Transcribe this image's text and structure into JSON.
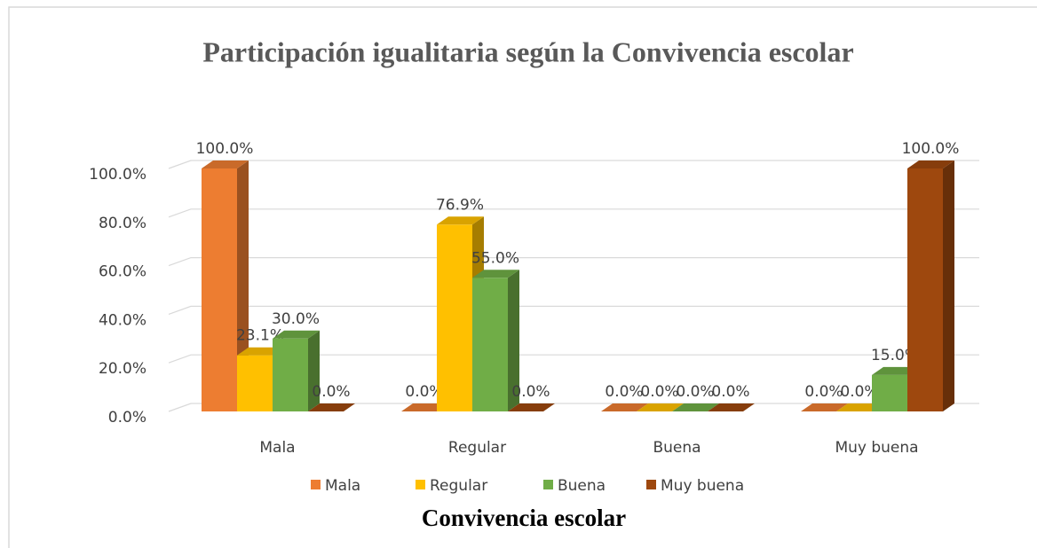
{
  "chart_data": {
    "type": "bar3d",
    "title": "Participación igualitaria según la Convivencia escolar",
    "x_label": "Convivencia escolar",
    "categories": [
      "Mala",
      "Regular",
      "Buena",
      "Muy buena"
    ],
    "series": [
      {
        "name": "Mala",
        "color": "#ED7D31",
        "values": [
          100,
          0,
          0,
          0
        ],
        "value_labels": [
          "100.0%",
          "0.0%",
          "0.0%",
          "0.0%"
        ]
      },
      {
        "name": "Regular",
        "color": "#FFC000",
        "values": [
          23.1,
          76.9,
          0,
          0
        ],
        "value_labels": [
          "23.1%",
          "76.9%",
          "0.0%",
          "0.0%"
        ]
      },
      {
        "name": "Buena",
        "color": "#70AD47",
        "values": [
          30,
          55,
          0,
          15
        ],
        "value_labels": [
          "30.0%",
          "55.0%",
          "0.0%",
          "15.0%"
        ]
      },
      {
        "name": "Muy buena",
        "color": "#9E480E",
        "values": [
          0,
          0,
          0,
          100
        ],
        "value_labels": [
          "0.0%",
          "0.0%",
          "0.0%",
          "100.0%"
        ]
      }
    ],
    "ylim": [
      0,
      100
    ],
    "yticks": [
      {
        "value": 0,
        "label": "0.0%"
      },
      {
        "value": 20,
        "label": "20.0%"
      },
      {
        "value": 40,
        "label": "40.0%"
      },
      {
        "value": 60,
        "label": "60.0%"
      },
      {
        "value": 80,
        "label": "80.0%"
      },
      {
        "value": 100,
        "label": "100.0%"
      }
    ],
    "grid": true,
    "legend": "bottom"
  }
}
